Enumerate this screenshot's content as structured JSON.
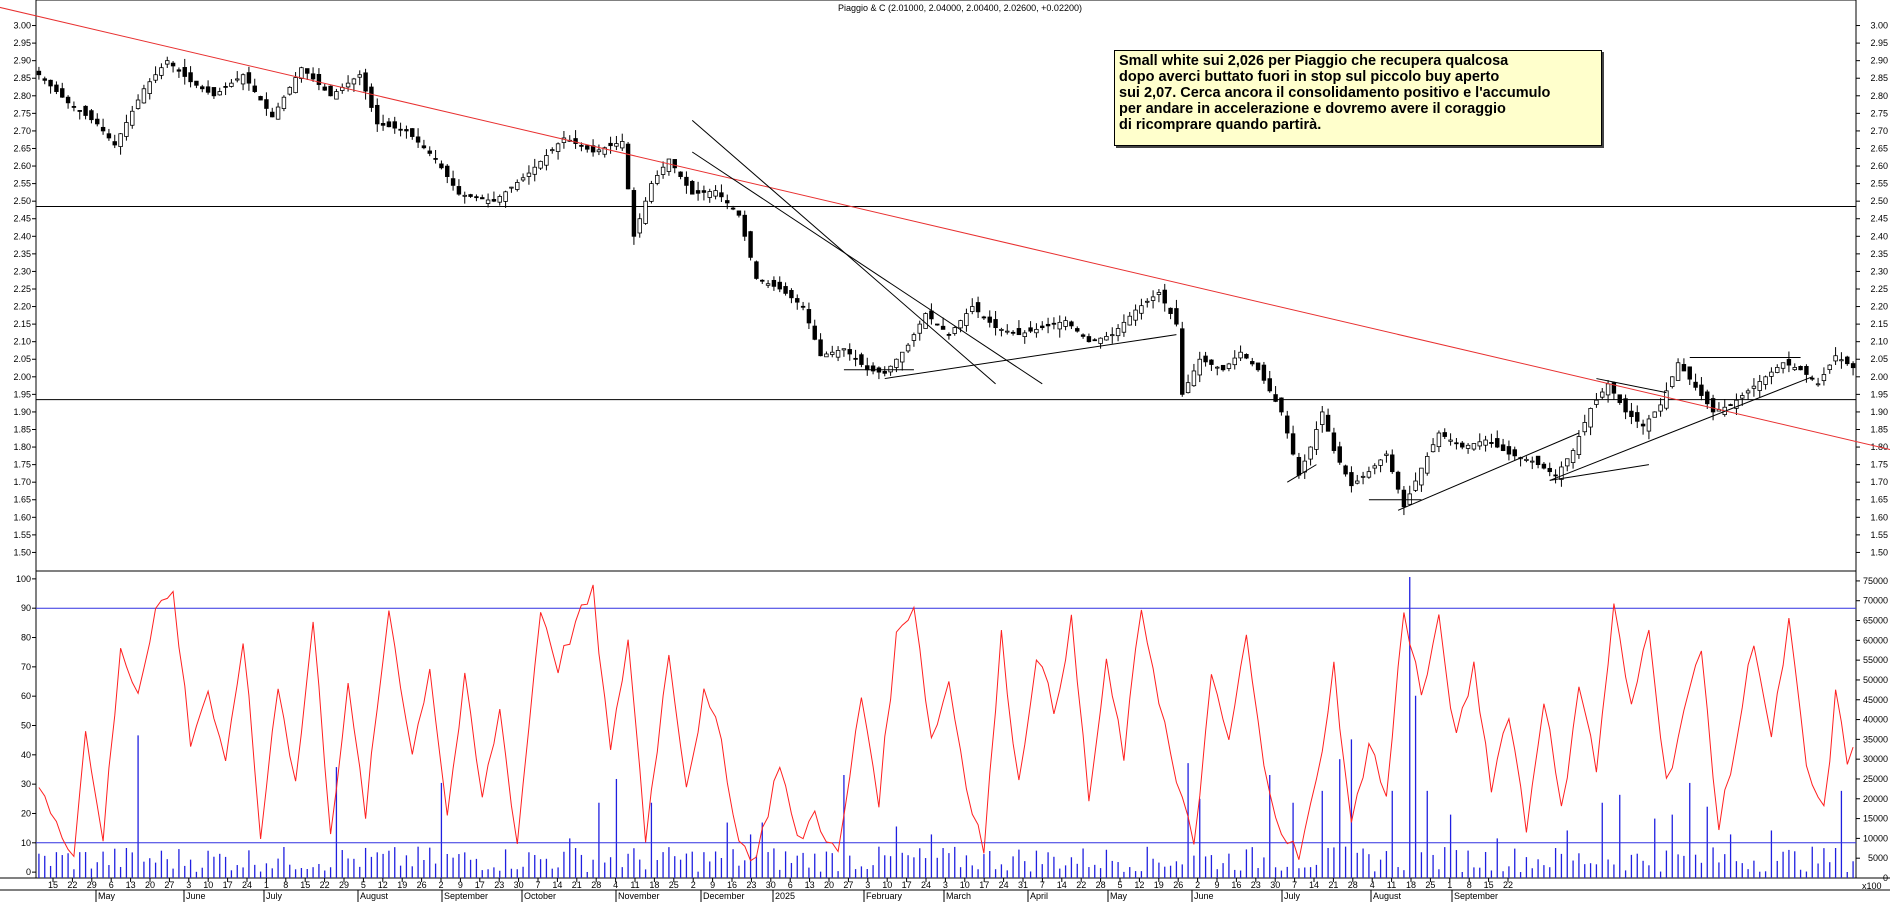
{
  "title": "Piaggio & C (2.01000, 2.04000, 2.00400, 2.02600, +0.02200)",
  "annotation": {
    "lines": [
      "Small white sui 2,026 per Piaggio che recupera qualcosa",
      "dopo averci  buttato fuori in stop sul piccolo buy aperto",
      "sui 2,07. Cerca ancora il consolidamento positivo e l'accumulo",
      "per andare in accelerazione e dovremo avere il coraggio",
      "di ricomprare quando partirà."
    ]
  },
  "colors": {
    "trendline": "#e83030",
    "oscillator": "#ff2020",
    "volume": "#2020e0",
    "level": "#3030e0",
    "support": "#000000",
    "note_bg": "#ffffcc"
  },
  "chart_data": [
    {
      "type": "candlestick",
      "title": "Piaggio & C (2.01000, 2.04000, 2.00400, 2.02600, +0.02200)",
      "ylim": [
        1.45,
        3.03
      ],
      "yticks": [
        "3.00",
        "2.95",
        "2.90",
        "2.85",
        "2.80",
        "2.75",
        "2.70",
        "2.65",
        "2.60",
        "2.55",
        "2.50",
        "2.45",
        "2.40",
        "2.35",
        "2.30",
        "2.25",
        "2.20",
        "2.15",
        "2.10",
        "2.05",
        "2.00",
        "1.95",
        "1.90",
        "1.85",
        "1.80",
        "1.75",
        "1.70",
        "1.65",
        "1.60",
        "1.55",
        "1.50"
      ],
      "last": {
        "open": 2.01,
        "high": 2.04,
        "low": 2.004,
        "close": 2.026,
        "change": 0.022
      },
      "anchors": [
        {
          "i": 0,
          "c": 2.86
        },
        {
          "i": 5,
          "c": 2.78
        },
        {
          "i": 10,
          "c": 2.72
        },
        {
          "i": 13,
          "c": 2.66
        },
        {
          "i": 18,
          "c": 2.82
        },
        {
          "i": 22,
          "c": 2.9
        },
        {
          "i": 26,
          "c": 2.84
        },
        {
          "i": 30,
          "c": 2.8
        },
        {
          "i": 35,
          "c": 2.86
        },
        {
          "i": 40,
          "c": 2.74
        },
        {
          "i": 45,
          "c": 2.88
        },
        {
          "i": 50,
          "c": 2.8
        },
        {
          "i": 55,
          "c": 2.86
        },
        {
          "i": 58,
          "c": 2.72
        },
        {
          "i": 63,
          "c": 2.7
        },
        {
          "i": 68,
          "c": 2.62
        },
        {
          "i": 72,
          "c": 2.52
        },
        {
          "i": 78,
          "c": 2.5
        },
        {
          "i": 84,
          "c": 2.58
        },
        {
          "i": 90,
          "c": 2.68
        },
        {
          "i": 95,
          "c": 2.64
        },
        {
          "i": 100,
          "c": 2.67
        },
        {
          "i": 102,
          "c": 2.4
        },
        {
          "i": 105,
          "c": 2.55
        },
        {
          "i": 108,
          "c": 2.62
        },
        {
          "i": 112,
          "c": 2.52
        },
        {
          "i": 116,
          "c": 2.53
        },
        {
          "i": 120,
          "c": 2.46
        },
        {
          "i": 123,
          "c": 2.28
        },
        {
          "i": 127,
          "c": 2.25
        },
        {
          "i": 131,
          "c": 2.2
        },
        {
          "i": 134,
          "c": 2.06
        },
        {
          "i": 138,
          "c": 2.08
        },
        {
          "i": 142,
          "c": 2.02
        },
        {
          "i": 145,
          "c": 2.01
        },
        {
          "i": 149,
          "c": 2.09
        },
        {
          "i": 152,
          "c": 2.18
        },
        {
          "i": 156,
          "c": 2.12
        },
        {
          "i": 160,
          "c": 2.2
        },
        {
          "i": 164,
          "c": 2.14
        },
        {
          "i": 168,
          "c": 2.12
        },
        {
          "i": 172,
          "c": 2.14
        },
        {
          "i": 176,
          "c": 2.16
        },
        {
          "i": 180,
          "c": 2.1
        },
        {
          "i": 184,
          "c": 2.12
        },
        {
          "i": 188,
          "c": 2.19
        },
        {
          "i": 192,
          "c": 2.24
        },
        {
          "i": 195,
          "c": 2.15
        },
        {
          "i": 196,
          "c": 1.95
        },
        {
          "i": 199,
          "c": 2.05
        },
        {
          "i": 203,
          "c": 2.02
        },
        {
          "i": 206,
          "c": 2.07
        },
        {
          "i": 209,
          "c": 2.02
        },
        {
          "i": 213,
          "c": 1.9
        },
        {
          "i": 216,
          "c": 1.72
        },
        {
          "i": 218,
          "c": 1.8
        },
        {
          "i": 220,
          "c": 1.9
        },
        {
          "i": 222,
          "c": 1.79
        },
        {
          "i": 225,
          "c": 1.69
        },
        {
          "i": 228,
          "c": 1.73
        },
        {
          "i": 231,
          "c": 1.78
        },
        {
          "i": 234,
          "c": 1.63
        },
        {
          "i": 237,
          "c": 1.74
        },
        {
          "i": 240,
          "c": 1.84
        },
        {
          "i": 244,
          "c": 1.8
        },
        {
          "i": 248,
          "c": 1.82
        },
        {
          "i": 252,
          "c": 1.78
        },
        {
          "i": 256,
          "c": 1.76
        },
        {
          "i": 260,
          "c": 1.72
        },
        {
          "i": 263,
          "c": 1.79
        },
        {
          "i": 266,
          "c": 1.91
        },
        {
          "i": 269,
          "c": 1.98
        },
        {
          "i": 272,
          "c": 1.9
        },
        {
          "i": 275,
          "c": 1.86
        },
        {
          "i": 278,
          "c": 1.92
        },
        {
          "i": 281,
          "c": 2.04
        },
        {
          "i": 284,
          "c": 1.97
        },
        {
          "i": 287,
          "c": 1.9
        },
        {
          "i": 290,
          "c": 1.92
        },
        {
          "i": 293,
          "c": 1.96
        },
        {
          "i": 296,
          "c": 2.0
        },
        {
          "i": 299,
          "c": 2.04
        },
        {
          "i": 302,
          "c": 2.02
        },
        {
          "i": 305,
          "c": 1.98
        },
        {
          "i": 308,
          "c": 2.06
        },
        {
          "i": 311,
          "c": 2.026
        }
      ],
      "horizontal_levels": [
        2.485,
        1.935
      ],
      "trendlines": [
        {
          "color": "red",
          "from": [
            -14,
            3.08
          ],
          "to": [
            340,
            1.705
          ]
        },
        {
          "color": "black",
          "from": [
            112,
            2.73
          ],
          "to": [
            164,
            1.98
          ]
        },
        {
          "color": "black",
          "from": [
            112,
            2.64
          ],
          "to": [
            172,
            1.98
          ]
        },
        {
          "color": "black",
          "from": [
            145,
            1.995
          ],
          "to": [
            195,
            2.12
          ]
        },
        {
          "color": "black",
          "from": [
            138,
            2.02
          ],
          "to": [
            150,
            2.02
          ]
        },
        {
          "color": "black",
          "from": [
            228,
            1.65
          ],
          "to": [
            237,
            1.65
          ]
        },
        {
          "color": "black",
          "from": [
            233,
            1.62
          ],
          "to": [
            264,
            1.84
          ]
        },
        {
          "color": "black",
          "from": [
            259,
            1.705
          ],
          "to": [
            276,
            1.75
          ]
        },
        {
          "color": "black",
          "from": [
            259,
            1.705
          ],
          "to": [
            304,
            2.0
          ]
        },
        {
          "color": "black",
          "from": [
            283,
            2.055
          ],
          "to": [
            302,
            2.055
          ]
        },
        {
          "color": "black",
          "from": [
            267,
            1.995
          ],
          "to": [
            279,
            1.955
          ]
        },
        {
          "color": "black",
          "from": [
            214,
            1.7
          ],
          "to": [
            219,
            1.75
          ]
        }
      ],
      "x_day_ticks": [
        "15",
        "22",
        "29",
        "6",
        "13",
        "20",
        "27",
        "3",
        "10",
        "17",
        "24",
        "1",
        "8",
        "15",
        "22",
        "29",
        "5",
        "12",
        "19",
        "26",
        "2",
        "9",
        "17",
        "23",
        "30",
        "7",
        "14",
        "21",
        "28",
        "4",
        "11",
        "18",
        "25",
        "2",
        "9",
        "16",
        "23",
        "30",
        "6",
        "13",
        "20",
        "27",
        "3",
        "10",
        "17",
        "24",
        "3",
        "10",
        "17",
        "24",
        "31",
        "7",
        "14",
        "22",
        "28",
        "5",
        "12",
        "19",
        "26",
        "2",
        "9",
        "16",
        "23",
        "30",
        "7",
        "14",
        "21",
        "28",
        "4",
        "11",
        "18",
        "25",
        "1",
        "8",
        "15",
        "22"
      ],
      "x_month_labels": [
        "May",
        "June",
        "July",
        "August",
        "September",
        "October",
        "November",
        "December",
        "2025",
        "February",
        "March",
        "April",
        "May",
        "June",
        "July",
        "August",
        "September"
      ]
    },
    {
      "type": "line",
      "name": "oscillator",
      "ylim": [
        -2,
        102
      ],
      "yticks": [
        "100",
        "90",
        "80",
        "70",
        "60",
        "50",
        "40",
        "30",
        "20",
        "10",
        "0"
      ],
      "levels": [
        90,
        10
      ],
      "anchors": [
        {
          "i": 0,
          "v": 30
        },
        {
          "i": 3,
          "v": 15
        },
        {
          "i": 6,
          "v": 8
        },
        {
          "i": 8,
          "v": 48
        },
        {
          "i": 11,
          "v": 12
        },
        {
          "i": 14,
          "v": 75
        },
        {
          "i": 17,
          "v": 62
        },
        {
          "i": 20,
          "v": 90
        },
        {
          "i": 23,
          "v": 95
        },
        {
          "i": 26,
          "v": 45
        },
        {
          "i": 29,
          "v": 62
        },
        {
          "i": 32,
          "v": 35
        },
        {
          "i": 35,
          "v": 80
        },
        {
          "i": 38,
          "v": 12
        },
        {
          "i": 41,
          "v": 65
        },
        {
          "i": 44,
          "v": 30
        },
        {
          "i": 47,
          "v": 85
        },
        {
          "i": 50,
          "v": 15
        },
        {
          "i": 53,
          "v": 62
        },
        {
          "i": 56,
          "v": 20
        },
        {
          "i": 60,
          "v": 90
        },
        {
          "i": 64,
          "v": 40
        },
        {
          "i": 67,
          "v": 70
        },
        {
          "i": 70,
          "v": 20
        },
        {
          "i": 73,
          "v": 65
        },
        {
          "i": 76,
          "v": 25
        },
        {
          "i": 79,
          "v": 55
        },
        {
          "i": 82,
          "v": 10
        },
        {
          "i": 86,
          "v": 90
        },
        {
          "i": 89,
          "v": 70
        },
        {
          "i": 92,
          "v": 85
        },
        {
          "i": 95,
          "v": 95
        },
        {
          "i": 98,
          "v": 40
        },
        {
          "i": 101,
          "v": 80
        },
        {
          "i": 104,
          "v": 12
        },
        {
          "i": 108,
          "v": 75
        },
        {
          "i": 111,
          "v": 30
        },
        {
          "i": 114,
          "v": 60
        },
        {
          "i": 117,
          "v": 45
        },
        {
          "i": 120,
          "v": 10
        },
        {
          "i": 123,
          "v": 5
        },
        {
          "i": 127,
          "v": 38
        },
        {
          "i": 130,
          "v": 10
        },
        {
          "i": 133,
          "v": 20
        },
        {
          "i": 137,
          "v": 5
        },
        {
          "i": 141,
          "v": 60
        },
        {
          "i": 144,
          "v": 25
        },
        {
          "i": 147,
          "v": 80
        },
        {
          "i": 150,
          "v": 92
        },
        {
          "i": 153,
          "v": 45
        },
        {
          "i": 156,
          "v": 65
        },
        {
          "i": 159,
          "v": 30
        },
        {
          "i": 162,
          "v": 8
        },
        {
          "i": 165,
          "v": 80
        },
        {
          "i": 168,
          "v": 30
        },
        {
          "i": 171,
          "v": 75
        },
        {
          "i": 174,
          "v": 55
        },
        {
          "i": 177,
          "v": 85
        },
        {
          "i": 180,
          "v": 25
        },
        {
          "i": 183,
          "v": 70
        },
        {
          "i": 186,
          "v": 40
        },
        {
          "i": 189,
          "v": 90
        },
        {
          "i": 192,
          "v": 60
        },
        {
          "i": 195,
          "v": 30
        },
        {
          "i": 198,
          "v": 10
        },
        {
          "i": 201,
          "v": 65
        },
        {
          "i": 204,
          "v": 45
        },
        {
          "i": 207,
          "v": 80
        },
        {
          "i": 210,
          "v": 35
        },
        {
          "i": 213,
          "v": 15
        },
        {
          "i": 216,
          "v": 5
        },
        {
          "i": 219,
          "v": 30
        },
        {
          "i": 222,
          "v": 70
        },
        {
          "i": 225,
          "v": 15
        },
        {
          "i": 228,
          "v": 45
        },
        {
          "i": 231,
          "v": 25
        },
        {
          "i": 234,
          "v": 90
        },
        {
          "i": 237,
          "v": 60
        },
        {
          "i": 240,
          "v": 85
        },
        {
          "i": 243,
          "v": 45
        },
        {
          "i": 246,
          "v": 70
        },
        {
          "i": 249,
          "v": 30
        },
        {
          "i": 252,
          "v": 55
        },
        {
          "i": 255,
          "v": 15
        },
        {
          "i": 258,
          "v": 60
        },
        {
          "i": 261,
          "v": 20
        },
        {
          "i": 264,
          "v": 65
        },
        {
          "i": 267,
          "v": 35
        },
        {
          "i": 270,
          "v": 90
        },
        {
          "i": 273,
          "v": 55
        },
        {
          "i": 276,
          "v": 85
        },
        {
          "i": 279,
          "v": 30
        },
        {
          "i": 282,
          "v": 55
        },
        {
          "i": 285,
          "v": 75
        },
        {
          "i": 288,
          "v": 15
        },
        {
          "i": 291,
          "v": 45
        },
        {
          "i": 294,
          "v": 80
        },
        {
          "i": 297,
          "v": 45
        },
        {
          "i": 300,
          "v": 85
        },
        {
          "i": 303,
          "v": 35
        },
        {
          "i": 306,
          "v": 20
        },
        {
          "i": 308,
          "v": 60
        },
        {
          "i": 310,
          "v": 38
        },
        {
          "i": 311,
          "v": 45
        }
      ]
    },
    {
      "type": "bar",
      "name": "volume",
      "ylim": [
        0,
        77000
      ],
      "yticks": [
        "75000",
        "70000",
        "65000",
        "60000",
        "55000",
        "50000",
        "45000",
        "40000",
        "35000",
        "30000",
        "25000",
        "20000",
        "15000",
        "10000",
        "5000",
        "0"
      ],
      "scale_label": "x100",
      "spikes": [
        {
          "i": 17,
          "v": 36000
        },
        {
          "i": 51,
          "v": 28000
        },
        {
          "i": 69,
          "v": 24000
        },
        {
          "i": 91,
          "v": 10000
        },
        {
          "i": 96,
          "v": 19000
        },
        {
          "i": 99,
          "v": 25000
        },
        {
          "i": 105,
          "v": 19000
        },
        {
          "i": 118,
          "v": 14000
        },
        {
          "i": 122,
          "v": 11000
        },
        {
          "i": 124,
          "v": 14000
        },
        {
          "i": 138,
          "v": 26000
        },
        {
          "i": 147,
          "v": 13000
        },
        {
          "i": 153,
          "v": 11000
        },
        {
          "i": 197,
          "v": 29000
        },
        {
          "i": 199,
          "v": 20000
        },
        {
          "i": 211,
          "v": 26000
        },
        {
          "i": 215,
          "v": 19000
        },
        {
          "i": 220,
          "v": 22000
        },
        {
          "i": 223,
          "v": 30000
        },
        {
          "i": 225,
          "v": 35000
        },
        {
          "i": 232,
          "v": 22000
        },
        {
          "i": 235,
          "v": 76000
        },
        {
          "i": 236,
          "v": 46000
        },
        {
          "i": 238,
          "v": 22000
        },
        {
          "i": 242,
          "v": 16000
        },
        {
          "i": 250,
          "v": 10000
        },
        {
          "i": 262,
          "v": 12000
        },
        {
          "i": 268,
          "v": 19000
        },
        {
          "i": 271,
          "v": 21000
        },
        {
          "i": 277,
          "v": 15000
        },
        {
          "i": 280,
          "v": 16000
        },
        {
          "i": 283,
          "v": 24000
        },
        {
          "i": 286,
          "v": 18000
        },
        {
          "i": 290,
          "v": 11000
        },
        {
          "i": 297,
          "v": 12000
        },
        {
          "i": 309,
          "v": 22000
        }
      ]
    }
  ]
}
